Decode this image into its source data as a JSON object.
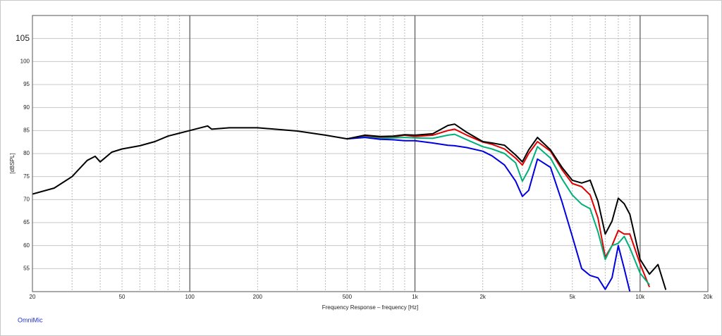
{
  "chart_data": {
    "type": "line",
    "xlabel": "Frequency Response – frequency [Hz]",
    "ylabel": "[dBSPL]",
    "source": "OmniMic",
    "log_x": true,
    "grid": true,
    "x": [
      20,
      25,
      30,
      35,
      38,
      40,
      45,
      50,
      60,
      70,
      80,
      100,
      120,
      125,
      150,
      200,
      300,
      400,
      500,
      600,
      700,
      800,
      900,
      1000,
      1200,
      1400,
      1500,
      1700,
      2000,
      2200,
      2500,
      2800,
      3000,
      3200,
      3500,
      4000,
      4500,
      5000,
      5500,
      6000,
      6500,
      7000,
      7500,
      8000,
      8500,
      9000,
      10000,
      11000,
      12000,
      13000
    ],
    "series": [
      {
        "color": "#e00000",
        "values": [
          null,
          null,
          null,
          null,
          null,
          null,
          null,
          null,
          null,
          null,
          null,
          null,
          null,
          null,
          null,
          null,
          null,
          null,
          83.2,
          83.8,
          83.5,
          83.6,
          84,
          83.7,
          84,
          85,
          85.3,
          84,
          82.5,
          82,
          81,
          79,
          77.5,
          80,
          82.6,
          80.5,
          76.5,
          73.5,
          72.8,
          71,
          66,
          57.5,
          60,
          63.3,
          62.5,
          62.5,
          56,
          51,
          null,
          null
        ]
      },
      {
        "color": "#00b07a",
        "values": [
          null,
          null,
          null,
          null,
          null,
          null,
          null,
          null,
          null,
          null,
          null,
          null,
          null,
          null,
          null,
          null,
          null,
          null,
          83.2,
          83.6,
          83.3,
          83.4,
          83.5,
          83.4,
          83.3,
          84,
          84.2,
          83,
          81.5,
          81,
          80,
          78,
          74,
          76.5,
          81.5,
          79,
          74.5,
          71,
          69,
          68,
          63,
          57,
          60,
          60.5,
          62,
          59.5,
          54,
          51.5,
          null,
          null
        ]
      },
      {
        "color": "#0000e0",
        "values": [
          null,
          null,
          null,
          null,
          null,
          null,
          null,
          null,
          null,
          null,
          null,
          null,
          null,
          null,
          null,
          null,
          null,
          null,
          83.2,
          83.5,
          83.1,
          83,
          82.8,
          82.8,
          82.3,
          81.8,
          81.7,
          81.3,
          80.5,
          79.5,
          77.5,
          74,
          70.7,
          72,
          78.8,
          77,
          69.5,
          62,
          55,
          53.5,
          53,
          50.5,
          53,
          60,
          55,
          50,
          null,
          null,
          null,
          null
        ]
      },
      {
        "color": "#000000",
        "values": [
          71.2,
          72.5,
          75,
          78.5,
          79.4,
          78.2,
          80.3,
          81,
          81.7,
          82.6,
          83.8,
          85,
          86,
          85.3,
          85.6,
          85.6,
          84.9,
          84,
          83.2,
          84,
          83.7,
          83.8,
          84.1,
          84,
          84.3,
          86.1,
          86.4,
          84.6,
          82.6,
          82.3,
          81.8,
          79.7,
          78.2,
          80.8,
          83.5,
          80.8,
          77,
          74.2,
          73.6,
          74.2,
          69.6,
          62.5,
          65.3,
          70.3,
          69.1,
          66.8,
          57,
          53.8,
          55.9,
          50.4
        ]
      }
    ],
    "xlim": [
      20,
      20000
    ],
    "ylim": [
      50,
      110
    ],
    "xticks": [
      20,
      50,
      100,
      200,
      500,
      {
        "value": 1000,
        "label": "1k"
      },
      {
        "value": 2000,
        "label": "2k"
      },
      {
        "value": 5000,
        "label": "5k"
      },
      {
        "value": 10000,
        "label": "10k"
      },
      {
        "value": 20000,
        "label": "20k"
      }
    ],
    "xminor": [
      30,
      40,
      60,
      70,
      80,
      90,
      300,
      400,
      600,
      700,
      800,
      900,
      3000,
      4000,
      6000,
      7000,
      8000,
      9000
    ],
    "yticks": [
      55,
      60,
      65,
      70,
      75,
      80,
      85,
      90,
      95,
      100,
      105
    ]
  }
}
